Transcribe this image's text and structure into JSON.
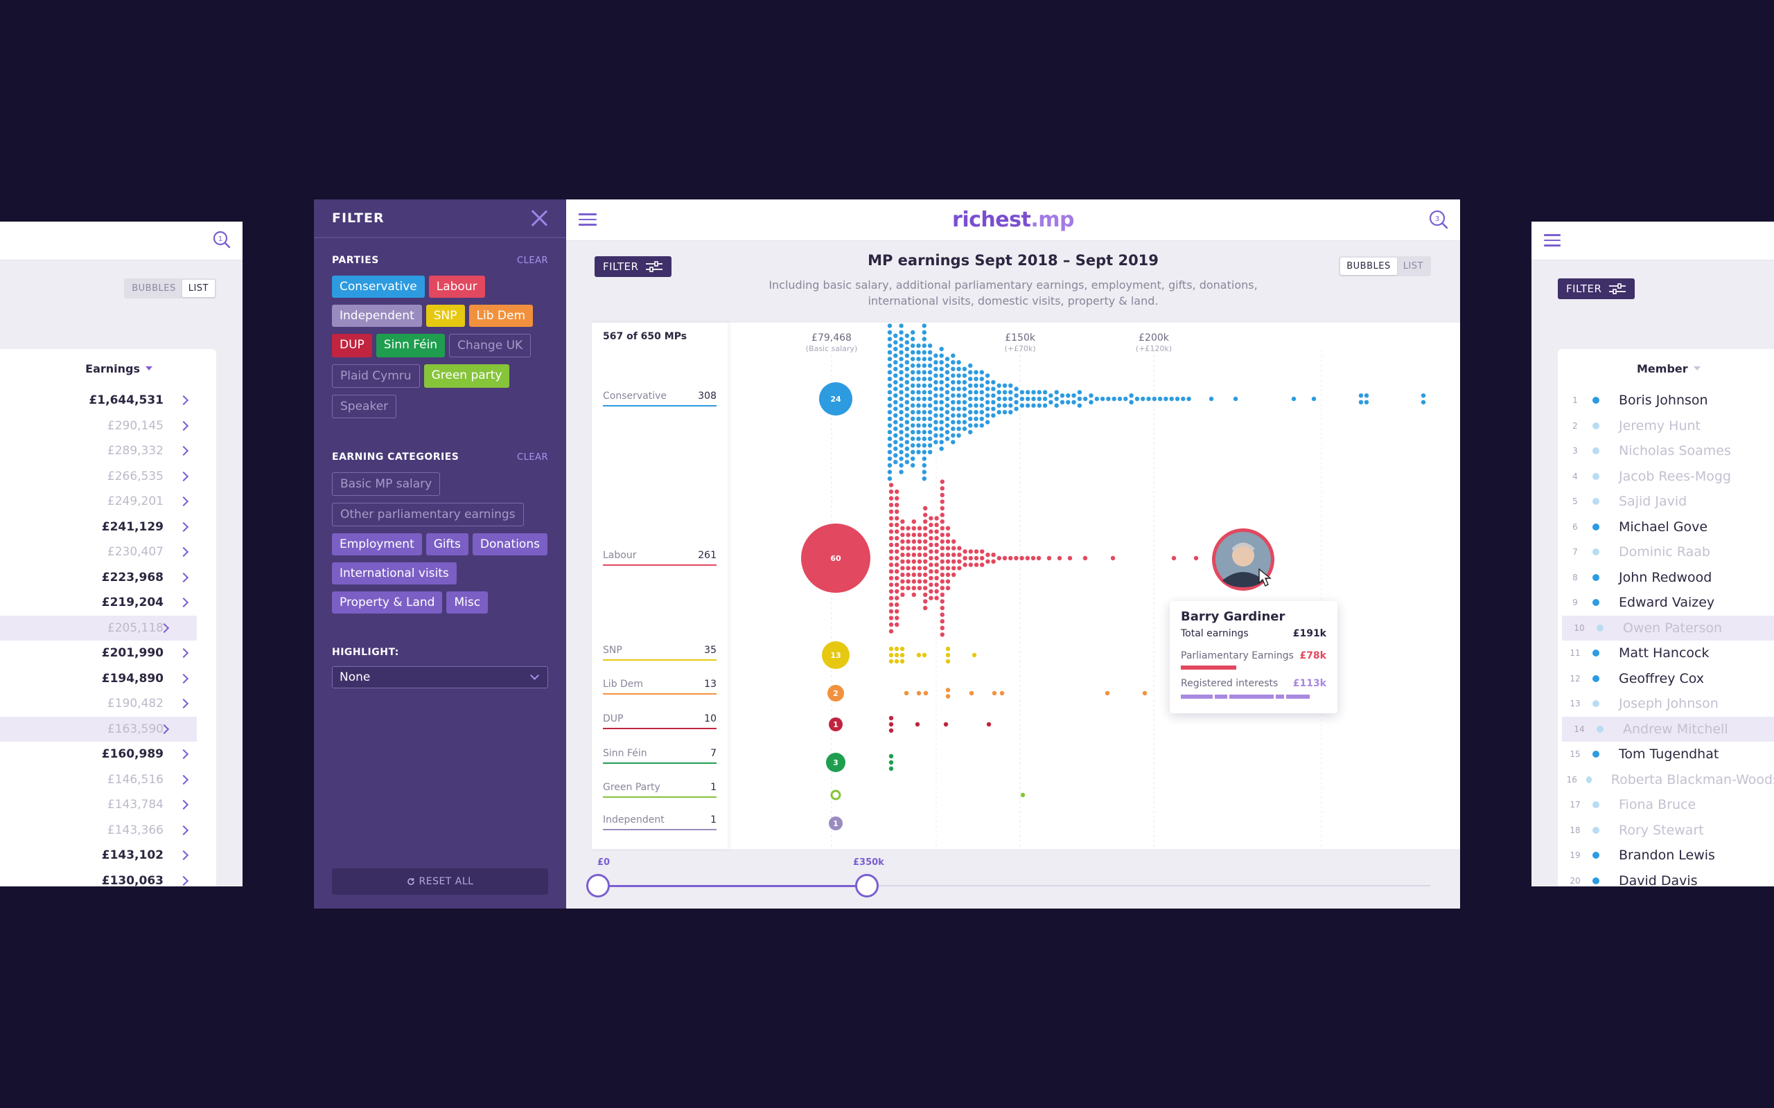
{
  "left_panel": {
    "toggle": {
      "bubbles": "BUBBLES",
      "list": "LIST"
    },
    "column_header": "Earnings",
    "rows": [
      {
        "value": "£1,644,531",
        "muted": false
      },
      {
        "value": "£290,145",
        "muted": true
      },
      {
        "value": "£289,332",
        "muted": true
      },
      {
        "value": "£266,535",
        "muted": true
      },
      {
        "value": "£249,201",
        "muted": true
      },
      {
        "value": "£241,129",
        "muted": false
      },
      {
        "value": "£230,407",
        "muted": true
      },
      {
        "value": "£223,968",
        "muted": false
      },
      {
        "value": "£219,204",
        "muted": false
      },
      {
        "value": "£205,118",
        "muted": true
      },
      {
        "value": "£201,990",
        "muted": false
      },
      {
        "value": "£194,890",
        "muted": false
      },
      {
        "value": "£190,482",
        "muted": true
      },
      {
        "value": "£163,590",
        "muted": true
      },
      {
        "value": "£160,989",
        "muted": false
      },
      {
        "value": "£146,516",
        "muted": true
      },
      {
        "value": "£143,784",
        "muted": true
      },
      {
        "value": "£143,366",
        "muted": true
      },
      {
        "value": "£143,102",
        "muted": false
      },
      {
        "value": "£130,063",
        "muted": false
      }
    ]
  },
  "filter_panel": {
    "title": "FILTER",
    "parties_title": "PARTIES",
    "clear_label": "CLEAR",
    "parties": [
      {
        "label": "Conservative",
        "color": "#2d9be0",
        "active": true
      },
      {
        "label": "Labour",
        "color": "#e2485f",
        "active": true
      },
      {
        "label": "Independent",
        "color": "#9a8bbf",
        "active": true
      },
      {
        "label": "SNP",
        "color": "#e6c811",
        "active": true
      },
      {
        "label": "Lib Dem",
        "color": "#f2913d",
        "active": true
      },
      {
        "label": "DUP",
        "color": "#c0243f",
        "active": true
      },
      {
        "label": "Sinn Féin",
        "color": "#1f9e4f",
        "active": true
      },
      {
        "label": "Change UK",
        "color": "",
        "active": false
      },
      {
        "label": "Plaid Cymru",
        "color": "",
        "active": false
      },
      {
        "label": "Green party",
        "color": "#86c43a",
        "active": true
      },
      {
        "label": "Speaker",
        "color": "",
        "active": false
      }
    ],
    "categories_title": "EARNING CATEGORIES",
    "categories": [
      {
        "label": "Basic MP salary",
        "active": false
      },
      {
        "label": "Other parliamentary earnings",
        "active": false
      },
      {
        "label": "Employment",
        "active": true
      },
      {
        "label": "Gifts",
        "active": true
      },
      {
        "label": "Donations",
        "active": true
      },
      {
        "label": "International visits",
        "active": true
      },
      {
        "label": "Property & Land",
        "active": true
      },
      {
        "label": "Misc",
        "active": true
      }
    ],
    "highlight_title": "HIGHLIGHT:",
    "highlight_value": "None",
    "reset_label": "RESET ALL"
  },
  "main": {
    "logo_part1": "richest",
    "logo_part2": ".mp",
    "search_count": "3",
    "filter_label": "FILTER",
    "title": "MP earnings Sept 2018 – Sept 2019",
    "subtitle_line1": "Including basic salary, additional parliamentary earnings, employment, gifts, donations,",
    "subtitle_line2": "international visits, domestic visits, property & land.",
    "toggle": {
      "bubbles": "BUBBLES",
      "list": "LIST"
    },
    "count_title": "567 of 650 MPs",
    "slider": {
      "min_label": "£0",
      "max_label": "£350k",
      "value_fraction": 0.36
    }
  },
  "chart_data": {
    "type": "scatter",
    "title": "MP earnings Sept 2018 – Sept 2019",
    "x_markers": [
      {
        "label": "£79,468",
        "sub": "(Basic salary)",
        "value": 79468
      },
      {
        "label": "£150k",
        "sub": "(+£70k)",
        "value": 150000
      },
      {
        "label": "£200k",
        "sub": "(+£120k)",
        "value": 200000
      }
    ],
    "parties": [
      {
        "name": "Conservative",
        "count": 308,
        "bubble": "24",
        "color": "#2d9be0"
      },
      {
        "name": "Labour",
        "count": 261,
        "bubble": "60",
        "color": "#e2485f"
      },
      {
        "name": "SNP",
        "count": 35,
        "bubble": "13",
        "color": "#e6c811"
      },
      {
        "name": "Lib Dem",
        "count": 13,
        "bubble": "2",
        "color": "#f2913d"
      },
      {
        "name": "DUP",
        "count": 10,
        "bubble": "1",
        "color": "#c0243f"
      },
      {
        "name": "Sinn Féin",
        "count": 7,
        "bubble": "3",
        "color": "#1f9e4f"
      },
      {
        "name": "Green Party",
        "count": 1,
        "bubble": "",
        "color": "#86c43a"
      },
      {
        "name": "Independent",
        "count": 1,
        "bubble": "1",
        "color": "#9a8bbf"
      }
    ]
  },
  "tooltip": {
    "name": "Barry Gardiner",
    "total_label": "Total earnings",
    "total_value": "£191k",
    "parl_label": "Parliamentary Earnings",
    "parl_value": "£78k",
    "parl_color": "#e2485f",
    "reg_label": "Registered interests",
    "reg_value": "£113k",
    "reg_color": "#a889e0"
  },
  "right_panel": {
    "filter_label": "FILTER",
    "column_header": "Member",
    "rows": [
      {
        "rank": "1",
        "name": "Boris Johnson",
        "muted": false
      },
      {
        "rank": "2",
        "name": "Jeremy Hunt",
        "muted": true
      },
      {
        "rank": "3",
        "name": "Nicholas Soames",
        "muted": true
      },
      {
        "rank": "4",
        "name": "Jacob Rees-Mogg",
        "muted": true
      },
      {
        "rank": "5",
        "name": "Sajid Javid",
        "muted": true
      },
      {
        "rank": "6",
        "name": "Michael Gove",
        "muted": false
      },
      {
        "rank": "7",
        "name": "Dominic Raab",
        "muted": true
      },
      {
        "rank": "8",
        "name": "John Redwood",
        "muted": false
      },
      {
        "rank": "9",
        "name": "Edward Vaizey",
        "muted": false
      },
      {
        "rank": "10",
        "name": "Owen Paterson",
        "muted": true
      },
      {
        "rank": "11",
        "name": "Matt Hancock",
        "muted": false
      },
      {
        "rank": "12",
        "name": "Geoffrey Cox",
        "muted": false
      },
      {
        "rank": "13",
        "name": "Joseph Johnson",
        "muted": true
      },
      {
        "rank": "14",
        "name": "Andrew Mitchell",
        "muted": true
      },
      {
        "rank": "15",
        "name": "Tom Tugendhat",
        "muted": false
      },
      {
        "rank": "16",
        "name": "Roberta Blackman-Woods",
        "muted": true
      },
      {
        "rank": "17",
        "name": "Fiona Bruce",
        "muted": true
      },
      {
        "rank": "18",
        "name": "Rory Stewart",
        "muted": true
      },
      {
        "rank": "19",
        "name": "Brandon Lewis",
        "muted": false
      },
      {
        "rank": "20",
        "name": "David Davis",
        "muted": false
      }
    ]
  }
}
